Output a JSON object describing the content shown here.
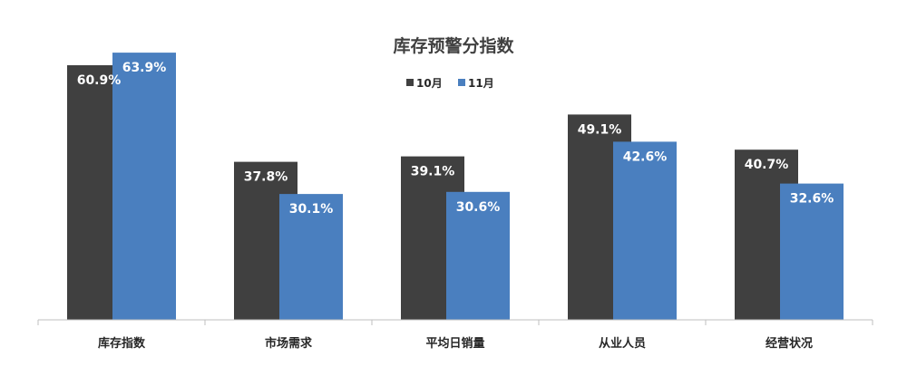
{
  "chart_data": {
    "type": "bar",
    "title": "库存预警分指数",
    "categories": [
      "库存指数",
      "市场需求",
      "平均日销量",
      "从业人员",
      "经营状况"
    ],
    "series": [
      {
        "name": "10月",
        "values": [
          60.9,
          37.8,
          39.1,
          49.1,
          40.7
        ],
        "labels": [
          "60.9%",
          "37.8%",
          "39.1%",
          "49.1%",
          "40.7%"
        ],
        "color": "#404040"
      },
      {
        "name": "11月",
        "values": [
          63.9,
          30.1,
          30.6,
          42.6,
          32.6
        ],
        "labels": [
          "63.9%",
          "30.1%",
          "30.6%",
          "42.6%",
          "32.6%"
        ],
        "color": "#4a7fbf"
      }
    ],
    "unit": "%",
    "ylim": [
      0,
      70
    ],
    "grid": false,
    "legend_position": "top-center",
    "axis_color": "#bfbfbf"
  }
}
